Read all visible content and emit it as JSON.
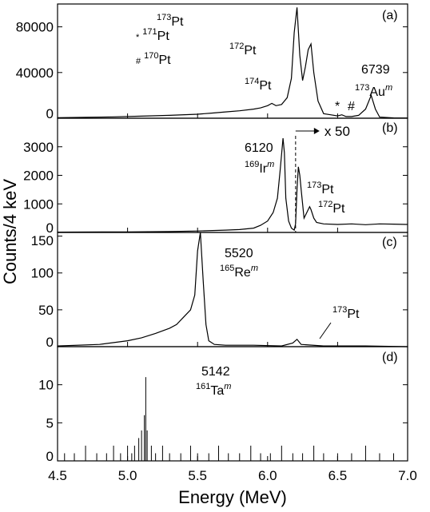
{
  "ylabel": "Counts/4 keV",
  "xlabel": "Energy (MeV)",
  "chart_data": [
    {
      "type": "line",
      "color": "#000000",
      "xlim": [
        4.5,
        7.0
      ],
      "ylim": [
        0,
        100000
      ],
      "yticks": [
        0,
        40000,
        80000
      ],
      "x": [
        4.5,
        4.7,
        4.9,
        5.1,
        5.3,
        5.5,
        5.6,
        5.7,
        5.8,
        5.9,
        5.95,
        6.0,
        6.03,
        6.06,
        6.1,
        6.14,
        6.17,
        6.19,
        6.21,
        6.23,
        6.25,
        6.27,
        6.29,
        6.31,
        6.33,
        6.36,
        6.4,
        6.45,
        6.5,
        6.53,
        6.56,
        6.6,
        6.65,
        6.7,
        6.74,
        6.77,
        6.8,
        6.9,
        7.0
      ],
      "values": [
        500,
        800,
        1200,
        1800,
        2500,
        3500,
        4500,
        5500,
        6500,
        8000,
        9000,
        11000,
        13000,
        11000,
        12000,
        18000,
        35000,
        75000,
        97000,
        55000,
        33000,
        45000,
        60000,
        65000,
        40000,
        15000,
        4000,
        3000,
        2000,
        3000,
        1500,
        1500,
        2500,
        8000,
        20000,
        8000,
        1000,
        300,
        200
      ],
      "annotations": [
        {
          "text": "(a)"
        },
        {
          "pre": "173",
          "text": "Pt"
        },
        {
          "pre": "172",
          "text": "Pt"
        },
        {
          "pre": "174",
          "text": "Pt"
        },
        {
          "text": "6739"
        },
        {
          "pre": "173",
          "text": "Au",
          "post": "m"
        },
        {
          "text": "*"
        },
        {
          "text": "#"
        },
        {
          "mark": "*",
          "pre": "171",
          "text": "Pt"
        },
        {
          "mark": "#",
          "pre": "170",
          "text": "Pt"
        }
      ]
    },
    {
      "type": "line",
      "color": "#000000",
      "xlim": [
        4.5,
        7.0
      ],
      "ylim": [
        0,
        4000
      ],
      "yticks": [
        0,
        1000,
        2000,
        3000
      ],
      "x": [
        4.5,
        5.0,
        5.3,
        5.5,
        5.7,
        5.8,
        5.9,
        5.95,
        6.0,
        6.04,
        6.07,
        6.09,
        6.11,
        6.12,
        6.13,
        6.15,
        6.17,
        6.19,
        6.2,
        6.21,
        6.22,
        6.23,
        6.24,
        6.26,
        6.28,
        6.3,
        6.31,
        6.33,
        6.35,
        6.4,
        6.5,
        6.6,
        6.7,
        6.8,
        6.9,
        7.0
      ],
      "values": [
        10,
        20,
        30,
        50,
        80,
        100,
        150,
        250,
        400,
        700,
        1200,
        2200,
        3300,
        2800,
        1200,
        400,
        150,
        80,
        300,
        1500,
        2300,
        2000,
        1500,
        500,
        700,
        900,
        800,
        500,
        350,
        300,
        280,
        300,
        270,
        300,
        290,
        280
      ],
      "scale_change": {
        "x": 6.2,
        "label": "x 50"
      },
      "annotations": [
        {
          "text": "(b)"
        },
        {
          "text": "6120"
        },
        {
          "pre": "169",
          "text": "Ir",
          "post": "m"
        },
        {
          "pre": "173",
          "text": "Pt"
        },
        {
          "pre": "172",
          "text": "Pt"
        }
      ]
    },
    {
      "type": "line",
      "color": "#000000",
      "xlim": [
        4.5,
        7.0
      ],
      "ylim": [
        0,
        155
      ],
      "yticks": [
        0,
        50,
        100,
        150
      ],
      "x": [
        4.5,
        4.8,
        5.0,
        5.1,
        5.2,
        5.3,
        5.35,
        5.4,
        5.45,
        5.48,
        5.5,
        5.52,
        5.54,
        5.56,
        5.58,
        5.62,
        5.7,
        5.9,
        6.1,
        6.18,
        6.21,
        6.24,
        6.4,
        6.7,
        7.0
      ],
      "values": [
        1,
        3,
        8,
        12,
        18,
        25,
        30,
        40,
        50,
        70,
        130,
        155,
        90,
        30,
        8,
        3,
        2,
        2,
        1,
        5,
        10,
        3,
        1,
        1,
        0
      ],
      "annotations": [
        {
          "text": "(c)"
        },
        {
          "text": "5520"
        },
        {
          "pre": "165",
          "text": "Re",
          "post": "m"
        },
        {
          "pre": "173",
          "text": "Pt"
        }
      ]
    },
    {
      "type": "stem",
      "color": "#000000",
      "xlim": [
        4.5,
        7.0
      ],
      "ylim": [
        0,
        15
      ],
      "yticks": [
        0,
        5,
        10
      ],
      "xticks": [
        4.5,
        {
          "value": 5.0,
          "label": "5.0"
        },
        5.5,
        {
          "value": 6.0,
          "label": "6.0"
        },
        6.5,
        {
          "value": 7.0,
          "label": "7.0"
        }
      ],
      "x": [
        4.55,
        4.62,
        4.7,
        4.78,
        4.85,
        4.9,
        4.95,
        5.0,
        5.03,
        5.05,
        5.08,
        5.1,
        5.12,
        5.13,
        5.14,
        5.17,
        5.2,
        5.25,
        5.3,
        5.38,
        5.45,
        5.5,
        5.58,
        5.65,
        5.72,
        5.8,
        5.88,
        5.95,
        6.02,
        6.1,
        6.18,
        6.25,
        6.33,
        6.4,
        6.5,
        6.6,
        6.7,
        6.8,
        6.9
      ],
      "values": [
        1,
        1,
        2,
        1,
        1,
        2,
        1,
        2,
        1,
        2,
        3,
        4,
        6,
        11,
        4,
        2,
        1,
        2,
        1,
        1,
        2,
        1,
        1,
        2,
        1,
        1,
        2,
        1,
        1,
        2,
        1,
        1,
        2,
        1,
        1,
        1,
        2,
        1,
        1
      ],
      "annotations": [
        {
          "text": "(d)"
        },
        {
          "text": "5142"
        },
        {
          "pre": "161",
          "text": "Ta",
          "post": "m"
        }
      ]
    }
  ]
}
